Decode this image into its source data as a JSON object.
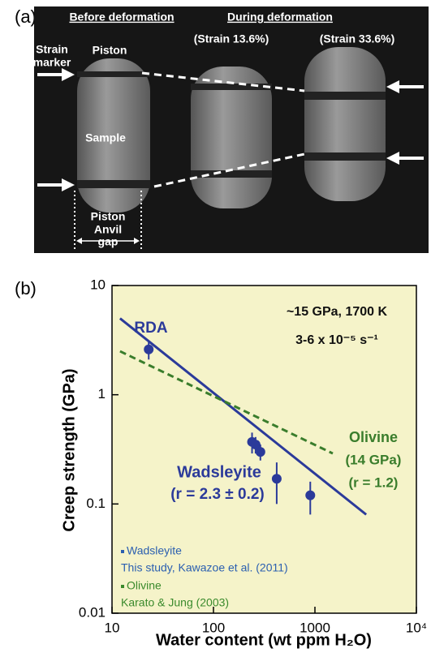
{
  "panel_a": {
    "label": "(a)",
    "before": "Before deformation",
    "during": "During deformation",
    "strains": [
      "(Strain 13.6%)",
      "(Strain 33.6%)"
    ],
    "marker": [
      "Strain",
      "marker"
    ],
    "piston_top": "Piston",
    "sample": "Sample",
    "piston_bottom": "Piston",
    "gap": [
      "Anvil",
      "gap"
    ]
  },
  "chart_data": {
    "type": "scatter",
    "panel_label": "(b)",
    "log_x": true,
    "log_y": true,
    "background": "#f5f3c9",
    "xlabel": "Water content (wt ppm H₂O)",
    "ylabel": "Creep strength (GPa)",
    "xlim": [
      10,
      10000
    ],
    "ylim": [
      0.01,
      10
    ],
    "xticks": [
      10,
      100,
      1000,
      {
        "value": 10000,
        "label": "10⁴"
      }
    ],
    "yticks": [
      0.01,
      0.1,
      1,
      10
    ],
    "series": [
      {
        "name": "Wadsleyite",
        "color": "#2b3a9a",
        "x": [
          23,
          240,
          260,
          290,
          420,
          900
        ],
        "values": [
          2.6,
          0.37,
          0.35,
          0.3,
          0.17,
          0.12
        ],
        "yerr": [
          0.5,
          0.08,
          0.06,
          0.05,
          0.07,
          0.04
        ]
      }
    ],
    "lines": [
      {
        "color": "#2b3a9a",
        "dashed": false,
        "x": [
          12,
          3200
        ],
        "values": [
          5,
          0.08
        ]
      },
      {
        "color": "#3a7d2c",
        "dashed": true,
        "x": [
          12,
          1500
        ],
        "values": [
          2.5,
          0.29
        ]
      }
    ],
    "annotations": [
      {
        "text": "RDA",
        "color": "#2b3a9a"
      },
      {
        "text": "~15 GPa, 1700 K",
        "color": "#111"
      },
      {
        "text": "3-6 x 10⁻⁵ s⁻¹",
        "color": "#111"
      },
      {
        "text": "Olivine",
        "color": "#3a7d2c"
      },
      {
        "text": "(14 GPa)",
        "color": "#3a7d2c"
      },
      {
        "text": "(r = 1.2)",
        "color": "#3a7d2c"
      },
      {
        "text": "Wadsleyite",
        "color": "#2b3a9a"
      },
      {
        "text": "(r = 2.3 ± 0.2)",
        "color": "#2b3a9a"
      }
    ],
    "legend": [
      {
        "name": "Wadsleyite",
        "source": "This study, Kawazoe et al. (2011)",
        "color": "#2b5fb0"
      },
      {
        "name": "Olivine",
        "source": "Karato & Jung (2003)",
        "color": "#3a8a2c"
      }
    ]
  }
}
